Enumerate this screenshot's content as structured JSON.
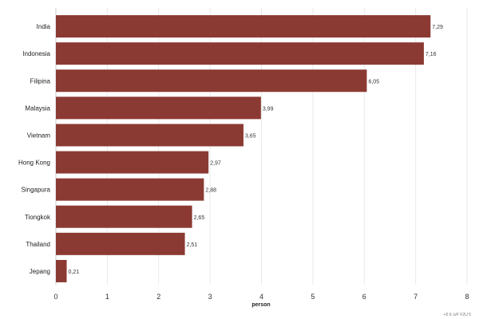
{
  "chart_data": {
    "type": "bar",
    "orientation": "horizontal",
    "categories": [
      "India",
      "Indonesia",
      "Filipina",
      "Malaysia",
      "Vietnam",
      "Hong Kong",
      "Singapura",
      "Tiongkok",
      "Thailand",
      "Jepang"
    ],
    "values": [
      7.29,
      7.16,
      6.05,
      3.99,
      3.65,
      2.97,
      2.88,
      2.65,
      2.51,
      0.21
    ],
    "value_labels": [
      "7,29",
      "7,16",
      "6,05",
      "3,99",
      "3,65",
      "2,97",
      "2,88",
      "2,65",
      "2,51",
      "0,21"
    ],
    "xlabel": "person",
    "ylabel": "",
    "title": "",
    "xlim": [
      0,
      8
    ],
    "xticks": [
      0,
      1,
      2,
      3,
      4,
      5,
      6,
      7,
      8
    ],
    "grid": true,
    "legend": "none",
    "bar_color": "#8b3a33",
    "credit": "+5 6 ⊙⁄F F2U 5"
  }
}
